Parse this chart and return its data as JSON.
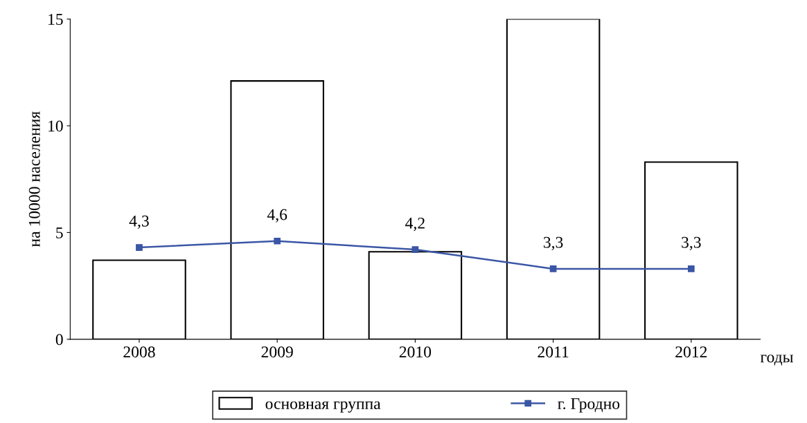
{
  "chart_data": {
    "type": "bar",
    "categories": [
      "2008",
      "2009",
      "2010",
      "2011",
      "2012"
    ],
    "xlabel": "годы",
    "ylabel": "на 10000 населения",
    "ylim": [
      0,
      15
    ],
    "yticks": [
      0,
      5,
      10,
      15
    ],
    "grid": false,
    "legend": "bottom",
    "series": [
      {
        "name": "основная группа",
        "color": "#ffffff",
        "values": [
          3.7,
          12.1,
          4.1,
          15.0,
          8.3
        ]
      },
      {
        "name": "г. Гродно",
        "type": "line",
        "color": "#3a56a5",
        "marker": "square",
        "data_labels": true,
        "value_labels": [
          "4,3",
          "4,6",
          "4,2",
          "3,3",
          "3,3"
        ],
        "values": [
          4.3,
          4.6,
          4.2,
          3.3,
          3.3
        ]
      }
    ]
  }
}
